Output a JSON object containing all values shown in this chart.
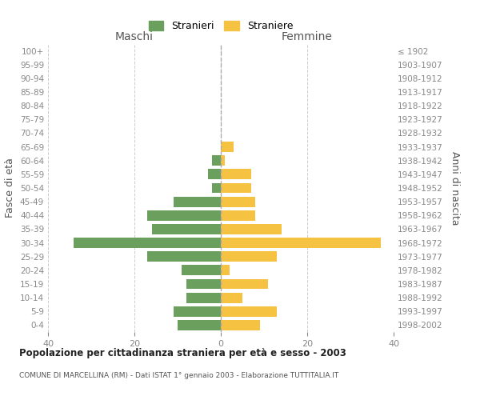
{
  "age_groups_bottom_to_top": [
    "0-4",
    "5-9",
    "10-14",
    "15-19",
    "20-24",
    "25-29",
    "30-34",
    "35-39",
    "40-44",
    "45-49",
    "50-54",
    "55-59",
    "60-64",
    "65-69",
    "70-74",
    "75-79",
    "80-84",
    "85-89",
    "90-94",
    "95-99",
    "100+"
  ],
  "birth_years_bottom_to_top": [
    "1998-2002",
    "1993-1997",
    "1988-1992",
    "1983-1987",
    "1978-1982",
    "1973-1977",
    "1968-1972",
    "1963-1967",
    "1958-1962",
    "1953-1957",
    "1948-1952",
    "1943-1947",
    "1938-1942",
    "1933-1937",
    "1928-1932",
    "1923-1927",
    "1918-1922",
    "1913-1917",
    "1908-1912",
    "1903-1907",
    "≤ 1902"
  ],
  "males_bottom_to_top": [
    10,
    11,
    8,
    8,
    9,
    17,
    34,
    16,
    17,
    11,
    2,
    3,
    2,
    0,
    0,
    0,
    0,
    0,
    0,
    0,
    0
  ],
  "females_bottom_to_top": [
    9,
    13,
    5,
    11,
    2,
    13,
    37,
    14,
    8,
    8,
    7,
    7,
    1,
    3,
    0,
    0,
    0,
    0,
    0,
    0,
    0
  ],
  "male_color": "#6a9f5e",
  "female_color": "#f5c242",
  "background_color": "#ffffff",
  "grid_color": "#cccccc",
  "title": "Popolazione per cittadinanza straniera per età e sesso - 2003",
  "subtitle": "COMUNE DI MARCELLINA (RM) - Dati ISTAT 1° gennaio 2003 - Elaborazione TUTTITALIA.IT",
  "left_label": "Maschi",
  "right_label": "Femmine",
  "left_axis_label": "Fasce di età",
  "right_axis_label": "Anni di nascita",
  "xlim": 40,
  "legend_stranieri": "Stranieri",
  "legend_straniere": "Straniere"
}
